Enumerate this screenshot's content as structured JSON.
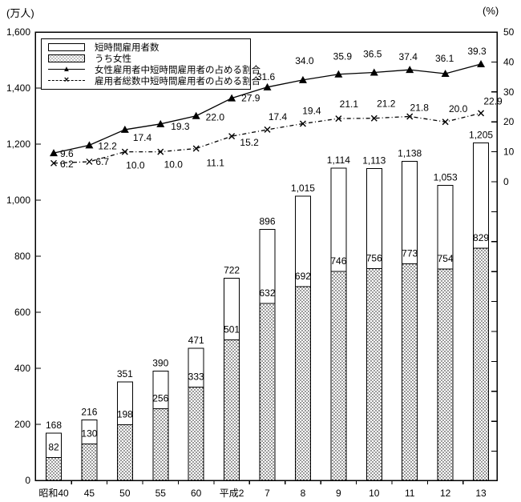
{
  "units": {
    "left": "(万人)",
    "right": "(%)"
  },
  "icons": {
    "triangle": "▲",
    "x": "×"
  },
  "legend": [
    {
      "label": "短時間雇用者数",
      "swatch": "bar-open"
    },
    {
      "label": "うち女性",
      "swatch": "bar-hatched"
    },
    {
      "label": "女性雇用者中短時間雇用者の占める割合",
      "swatch": "line-triangle"
    },
    {
      "label": "雇用者総数中短時間雇用者の占める割合",
      "swatch": "line-x-dashed"
    }
  ],
  "chart_data": {
    "type": "bar",
    "subtype": "combo-bar-line-dual-axis",
    "categories": [
      "昭和40",
      "45",
      "50",
      "55",
      "60",
      "平成2",
      "7",
      "8",
      "9",
      "10",
      "11",
      "12",
      "13"
    ],
    "bar_series": [
      {
        "name": "短時間雇用者数",
        "axis": "left",
        "fill": "open",
        "values": [
          168,
          216,
          351,
          390,
          471,
          722,
          896,
          1015,
          1114,
          1113,
          1138,
          1053,
          1205
        ]
      },
      {
        "name": "うち女性",
        "axis": "left",
        "fill": "dotted-hatch",
        "values": [
          82,
          130,
          198,
          256,
          333,
          501,
          632,
          692,
          746,
          756,
          773,
          754,
          829
        ]
      }
    ],
    "line_series": [
      {
        "name": "女性雇用者中短時間雇用者の占める割合",
        "axis": "right",
        "marker": "triangle",
        "style": "solid",
        "values": [
          9.6,
          12.2,
          17.4,
          19.3,
          22.0,
          27.9,
          31.6,
          34.0,
          35.9,
          36.5,
          37.4,
          36.1,
          39.3
        ]
      },
      {
        "name": "雇用者総数中短時間雇用者の占める割合",
        "axis": "right",
        "marker": "x",
        "style": "dash-dot",
        "values": [
          6.2,
          6.7,
          10.0,
          10.0,
          11.1,
          15.2,
          17.4,
          19.4,
          21.1,
          21.2,
          21.8,
          20.0,
          22.9
        ]
      }
    ],
    "left_axis": {
      "title": "(万人)",
      "min": 0,
      "max": 1600,
      "step": 200,
      "labels": [
        "0",
        "200",
        "400",
        "600",
        "800",
        "1,000",
        "1,200",
        "1,400",
        "1,600"
      ]
    },
    "right_axis": {
      "title": "(%)",
      "min": 0,
      "max": 50,
      "step": 10,
      "labels": [
        "0",
        "10",
        "20",
        "30",
        "40",
        "50"
      ]
    },
    "grid": false,
    "legend_position": "top-left-inside",
    "colors": {
      "stroke": "#000000",
      "background": "#ffffff"
    }
  }
}
